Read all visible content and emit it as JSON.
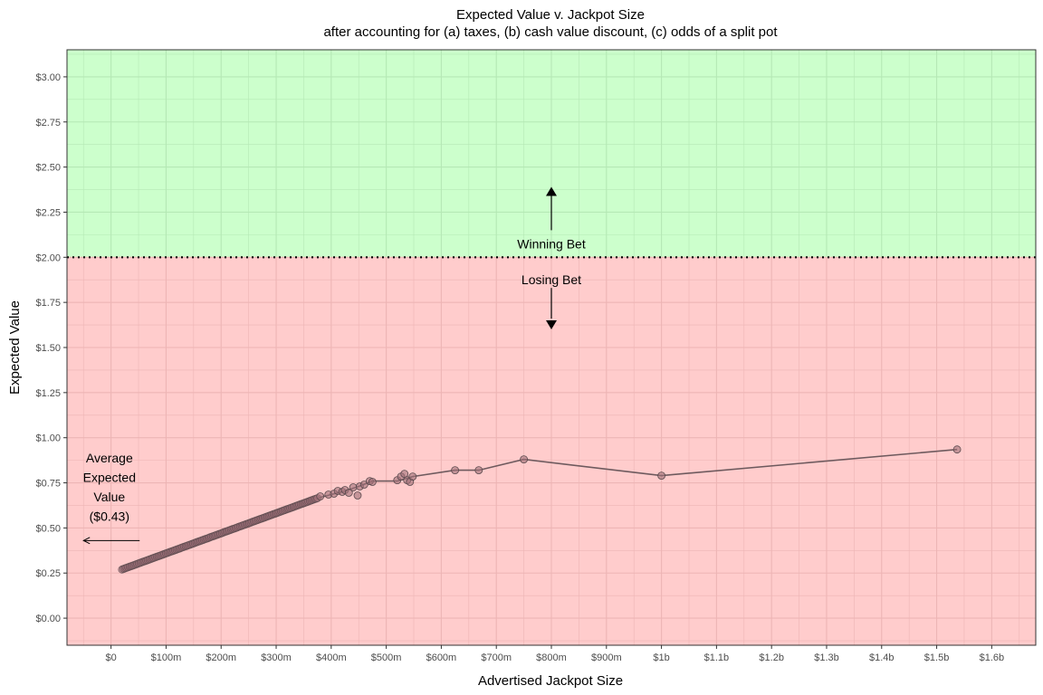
{
  "chart_data": {
    "type": "scatter",
    "title": "Expected Value v. Jackpot Size",
    "subtitle": "after accounting for (a) taxes, (b) cash value discount, (c) odds of a split pot",
    "xlabel": "Advertised Jackpot Size",
    "ylabel": "Expected Value",
    "xlim": [
      -80,
      1680
    ],
    "ylim": [
      -0.15,
      3.15
    ],
    "x_units": "millions of dollars",
    "x_ticks": [
      {
        "value": 0,
        "label": "$0"
      },
      {
        "value": 100,
        "label": "$100m"
      },
      {
        "value": 200,
        "label": "$200m"
      },
      {
        "value": 300,
        "label": "$300m"
      },
      {
        "value": 400,
        "label": "$400m"
      },
      {
        "value": 500,
        "label": "$500m"
      },
      {
        "value": 600,
        "label": "$600m"
      },
      {
        "value": 700,
        "label": "$700m"
      },
      {
        "value": 800,
        "label": "$800m"
      },
      {
        "value": 900,
        "label": "$900m"
      },
      {
        "value": 1000,
        "label": "$1b"
      },
      {
        "value": 1100,
        "label": "$1.1b"
      },
      {
        "value": 1200,
        "label": "$1.2b"
      },
      {
        "value": 1300,
        "label": "$1.3b"
      },
      {
        "value": 1400,
        "label": "$1.4b"
      },
      {
        "value": 1500,
        "label": "$1.5b"
      },
      {
        "value": 1600,
        "label": "$1.6b"
      }
    ],
    "y_ticks": [
      {
        "value": 0,
        "label": "$0.00"
      },
      {
        "value": 0.25,
        "label": "$0.25"
      },
      {
        "value": 0.5,
        "label": "$0.50"
      },
      {
        "value": 0.75,
        "label": "$0.75"
      },
      {
        "value": 1.0,
        "label": "$1.00"
      },
      {
        "value": 1.25,
        "label": "$1.25"
      },
      {
        "value": 1.5,
        "label": "$1.50"
      },
      {
        "value": 1.75,
        "label": "$1.75"
      },
      {
        "value": 2.0,
        "label": "$2.00"
      },
      {
        "value": 2.25,
        "label": "$2.25"
      },
      {
        "value": 2.5,
        "label": "$2.50"
      },
      {
        "value": 2.75,
        "label": "$2.75"
      },
      {
        "value": 3.0,
        "label": "$3.00"
      }
    ],
    "break_even": 2.0,
    "regions": [
      {
        "label": "Winning Bet",
        "from": 2.0,
        "to": 3.15,
        "color": "#ccffcc"
      },
      {
        "label": "Losing Bet",
        "from": -0.15,
        "to": 2.0,
        "color": "#ffcccc"
      }
    ],
    "grid": true,
    "dense_segment": {
      "x_start": 20,
      "x_end": 375,
      "y_start": 0.27,
      "y_end": 0.665,
      "count": 130,
      "note": "dense run of overlapping points along a straight line"
    },
    "points": [
      {
        "x": 380,
        "y": 0.675
      },
      {
        "x": 395,
        "y": 0.685
      },
      {
        "x": 405,
        "y": 0.69
      },
      {
        "x": 412,
        "y": 0.705
      },
      {
        "x": 420,
        "y": 0.7
      },
      {
        "x": 425,
        "y": 0.71
      },
      {
        "x": 432,
        "y": 0.695
      },
      {
        "x": 440,
        "y": 0.725
      },
      {
        "x": 448,
        "y": 0.68
      },
      {
        "x": 452,
        "y": 0.73
      },
      {
        "x": 460,
        "y": 0.74
      },
      {
        "x": 470,
        "y": 0.76
      },
      {
        "x": 475,
        "y": 0.755
      },
      {
        "x": 520,
        "y": 0.765
      },
      {
        "x": 527,
        "y": 0.785
      },
      {
        "x": 533,
        "y": 0.8
      },
      {
        "x": 538,
        "y": 0.765
      },
      {
        "x": 543,
        "y": 0.755
      },
      {
        "x": 548,
        "y": 0.785
      },
      {
        "x": 625,
        "y": 0.82
      },
      {
        "x": 668,
        "y": 0.82
      },
      {
        "x": 750,
        "y": 0.88
      },
      {
        "x": 1000,
        "y": 0.79
      },
      {
        "x": 1537,
        "y": 0.935
      }
    ],
    "line_path": [
      [
        20,
        0.27
      ],
      [
        375,
        0.665
      ],
      [
        400,
        0.685
      ],
      [
        425,
        0.705
      ],
      [
        450,
        0.73
      ],
      [
        475,
        0.76
      ],
      [
        520,
        0.76
      ],
      [
        548,
        0.785
      ],
      [
        625,
        0.82
      ],
      [
        668,
        0.82
      ],
      [
        750,
        0.88
      ],
      [
        1000,
        0.79
      ],
      [
        1537,
        0.935
      ]
    ],
    "annotations": {
      "winning": {
        "text": "Winning Bet",
        "arrow": "up"
      },
      "losing": {
        "text": "Losing Bet",
        "arrow": "down"
      },
      "average": {
        "lines": [
          "Average",
          "Expected",
          "Value",
          "($0.43)"
        ],
        "value": 0.43,
        "arrow": "left"
      }
    },
    "colors": {
      "win_bg": "#ccffcc",
      "lose_bg": "#ffcccc",
      "grid_win": "#b5e8b5",
      "grid_lose": "#edb5b5",
      "line": "#6e5a5e",
      "point_fill": "#a07078",
      "point_stroke": "#5a4a4e"
    }
  }
}
